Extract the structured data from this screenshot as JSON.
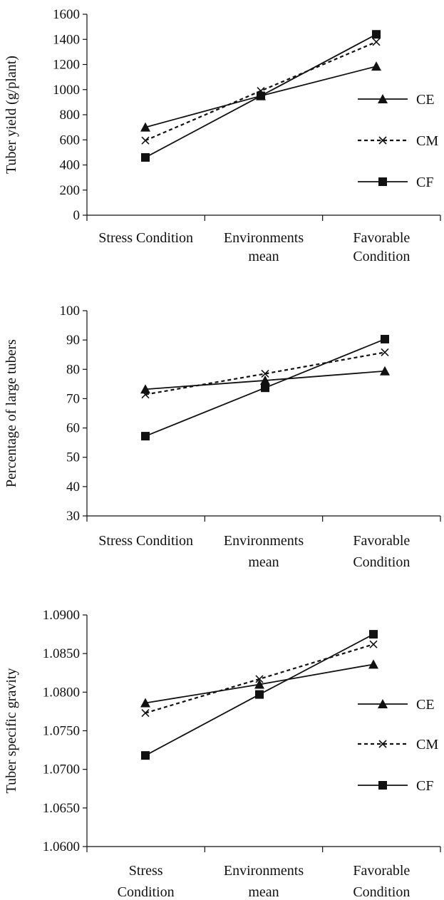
{
  "chart_data": [
    {
      "type": "line",
      "title": "",
      "ylabel": "Tuber yield (g/plant)",
      "xlabel": "",
      "categories": [
        [
          "Stress Condition"
        ],
        [
          "Environments",
          "mean"
        ],
        [
          "Favorable",
          "Condition"
        ]
      ],
      "ylim": [
        0,
        1600
      ],
      "yticks": [
        0,
        200,
        400,
        600,
        800,
        1000,
        1200,
        1400,
        1600
      ],
      "ytick_labels": [
        "0",
        "200",
        "400",
        "600",
        "800",
        "1000",
        "1200",
        "1400",
        "1600"
      ],
      "legend": {
        "show": true,
        "position": "right"
      },
      "series": [
        {
          "name": "CE",
          "values": [
            700,
            950,
            1185
          ],
          "marker": "triangle",
          "dashed": false
        },
        {
          "name": "CM",
          "values": [
            595,
            990,
            1380
          ],
          "marker": "x",
          "dashed": true
        },
        {
          "name": "CF",
          "values": [
            460,
            950,
            1440
          ],
          "marker": "square",
          "dashed": false
        }
      ]
    },
    {
      "type": "line",
      "title": "",
      "ylabel": "Percentage of large tubers",
      "xlabel": "",
      "categories": [
        [
          "Stress Condition"
        ],
        [
          "Environments",
          "mean"
        ],
        [
          "Favorable",
          "Condition"
        ]
      ],
      "ylim": [
        30,
        100
      ],
      "yticks": [
        30,
        40,
        50,
        60,
        70,
        80,
        90,
        100
      ],
      "ytick_labels": [
        "30",
        "40",
        "50",
        "60",
        "70",
        "80",
        "90",
        "100"
      ],
      "legend": {
        "show": false,
        "position": "none"
      },
      "series": [
        {
          "name": "CE",
          "values": [
            73.2,
            76.2,
            79.4
          ],
          "marker": "triangle",
          "dashed": false
        },
        {
          "name": "CM",
          "values": [
            71.4,
            78.5,
            85.8
          ],
          "marker": "x",
          "dashed": true
        },
        {
          "name": "CF",
          "values": [
            57.2,
            73.7,
            90.3
          ],
          "marker": "square",
          "dashed": false
        }
      ]
    },
    {
      "type": "line",
      "title": "",
      "ylabel": "Tuber specific gravity",
      "xlabel": "",
      "categories": [
        [
          "Stress",
          "Condition"
        ],
        [
          "Environments",
          "mean"
        ],
        [
          "Favorable",
          "Condition"
        ]
      ],
      "ylim": [
        1.06,
        1.09
      ],
      "yticks": [
        1.06,
        1.065,
        1.07,
        1.075,
        1.08,
        1.085,
        1.09
      ],
      "ytick_labels": [
        "1.0600",
        "1.0650",
        "1.0700",
        "1.0750",
        "1.0800",
        "1.0850",
        "1.0900"
      ],
      "legend": {
        "show": true,
        "position": "right"
      },
      "series": [
        {
          "name": "CE",
          "values": [
            1.0786,
            1.081,
            1.0836
          ],
          "marker": "triangle",
          "dashed": false
        },
        {
          "name": "CM",
          "values": [
            1.0773,
            1.0817,
            1.0862
          ],
          "marker": "x",
          "dashed": true
        },
        {
          "name": "CF",
          "values": [
            1.0718,
            1.0797,
            1.0875
          ],
          "marker": "square",
          "dashed": false
        }
      ]
    }
  ]
}
